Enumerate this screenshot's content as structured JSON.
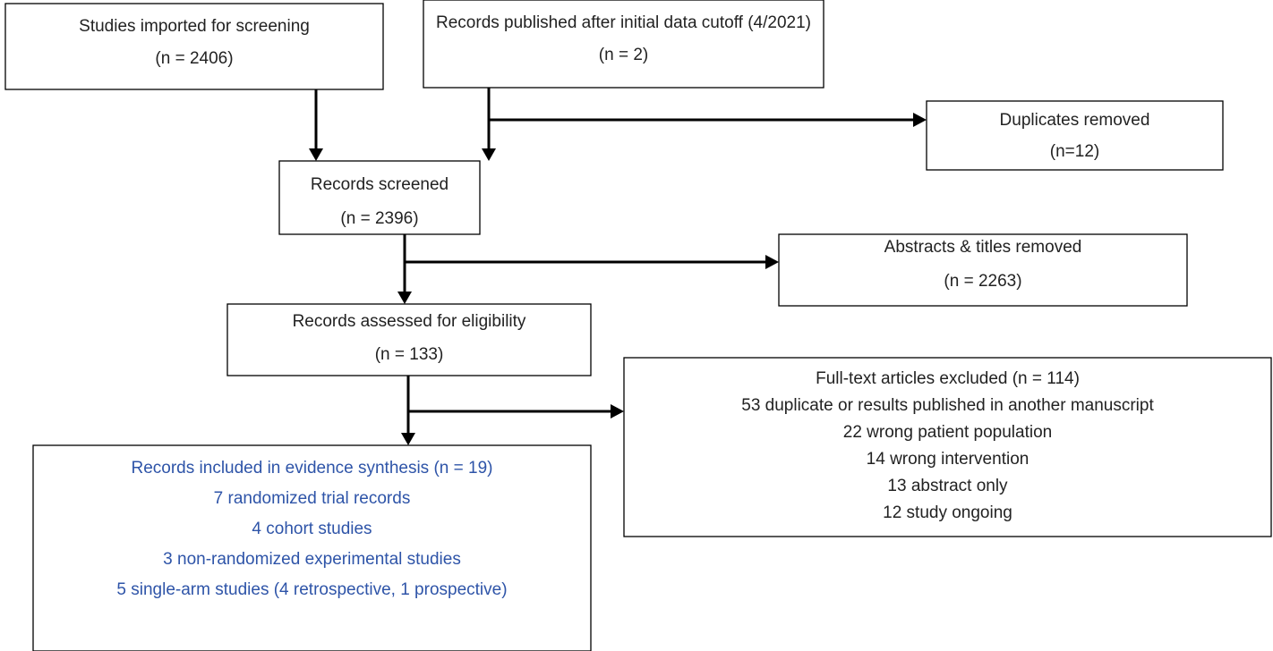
{
  "nodes": [
    {
      "lines": [
        "Studies imported for screening",
        "(n = 2406)"
      ]
    },
    {
      "lines": [
        "Records published after initial data cutoff (4/2021)",
        "(n = 2)"
      ]
    },
    {
      "lines": [
        "Duplicates removed",
        "(n=12)"
      ]
    },
    {
      "lines": [
        "Records screened",
        "(n = 2396)"
      ]
    },
    {
      "lines": [
        "Abstracts & titles removed",
        "(n = 2263)"
      ]
    },
    {
      "lines": [
        "Records assessed for eligibility",
        "(n = 133)"
      ]
    },
    {
      "lines": [
        "Full-text articles excluded  (n = 114)",
        "53 duplicate or results published in another manuscript",
        "22 wrong patient population",
        "14 wrong intervention",
        "13 abstract only",
        "12 study ongoing"
      ]
    },
    {
      "lines": [
        "Records included in evidence synthesis (n = 19)",
        "7 randomized trial records",
        "4 cohort studies",
        "3 non-randomized experimental studies",
        "5 single-arm studies (4 retrospective, 1 prospective)"
      ]
    }
  ]
}
